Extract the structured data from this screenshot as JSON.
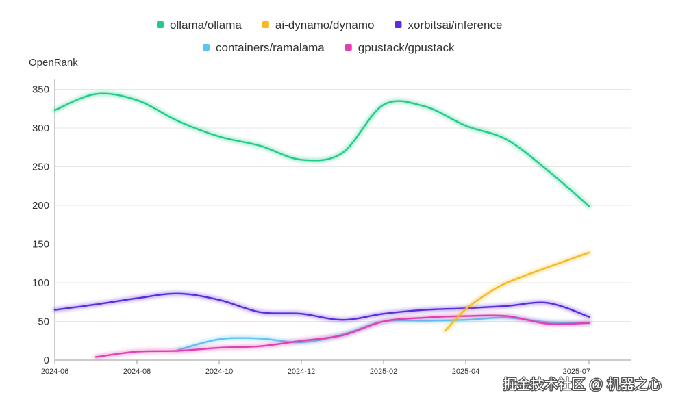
{
  "chart_data": {
    "type": "line",
    "ylabel": "OpenRank",
    "ylim": [
      0,
      350
    ],
    "yticks": [
      0,
      50,
      100,
      150,
      200,
      250,
      300,
      350
    ],
    "xticks": [
      "2024-06",
      "2024-08",
      "2024-10",
      "2024-12",
      "2025-02",
      "2025-04",
      "2025-07"
    ],
    "xtick_months": [
      0,
      2,
      4,
      6,
      8,
      10,
      13
    ],
    "grid": "horizontal",
    "legend_position": "top-center",
    "series": [
      {
        "name": "ollama/ollama",
        "color": "#22cc88",
        "points": [
          [
            0,
            323
          ],
          [
            1,
            344
          ],
          [
            2,
            336
          ],
          [
            3,
            309
          ],
          [
            4,
            289
          ],
          [
            5,
            277
          ],
          [
            6,
            259
          ],
          [
            7,
            268
          ],
          [
            8,
            330
          ],
          [
            9,
            328
          ],
          [
            10,
            303
          ],
          [
            11,
            285
          ],
          [
            12,
            245
          ],
          [
            13,
            199
          ]
        ]
      },
      {
        "name": "ai-dynamo/dynamo",
        "color": "#f5b921",
        "points": [
          [
            9.5,
            38
          ],
          [
            10,
            66
          ],
          [
            10.5,
            85
          ],
          [
            11,
            100
          ],
          [
            12,
            120
          ],
          [
            13,
            139
          ]
        ]
      },
      {
        "name": "xorbitsai/inference",
        "color": "#5b2ce0",
        "points": [
          [
            0,
            65
          ],
          [
            1,
            72
          ],
          [
            2,
            80
          ],
          [
            3,
            86
          ],
          [
            4,
            78
          ],
          [
            5,
            62
          ],
          [
            6,
            60
          ],
          [
            7,
            52
          ],
          [
            8,
            60
          ],
          [
            9,
            65
          ],
          [
            10,
            67
          ],
          [
            11,
            70
          ],
          [
            12,
            74
          ],
          [
            13,
            56
          ]
        ]
      },
      {
        "name": "containers/ramalama",
        "color": "#5ec4f0",
        "points": [
          [
            3,
            13
          ],
          [
            4,
            27
          ],
          [
            5,
            28
          ],
          [
            6,
            23
          ],
          [
            7,
            33
          ],
          [
            8,
            50
          ],
          [
            9,
            51
          ],
          [
            10,
            52
          ],
          [
            11,
            55
          ],
          [
            12,
            49
          ],
          [
            13,
            48
          ]
        ]
      },
      {
        "name": "gpustack/gpustack",
        "color": "#e040b0",
        "points": [
          [
            1,
            4
          ],
          [
            2,
            11
          ],
          [
            3,
            12
          ],
          [
            4,
            16
          ],
          [
            5,
            18
          ],
          [
            6,
            25
          ],
          [
            7,
            32
          ],
          [
            8,
            50
          ],
          [
            9,
            55
          ],
          [
            10,
            57
          ],
          [
            11,
            57
          ],
          [
            12,
            47
          ],
          [
            13,
            48
          ]
        ]
      }
    ]
  },
  "watermark": "掘金技术社区 @ 机器之心"
}
